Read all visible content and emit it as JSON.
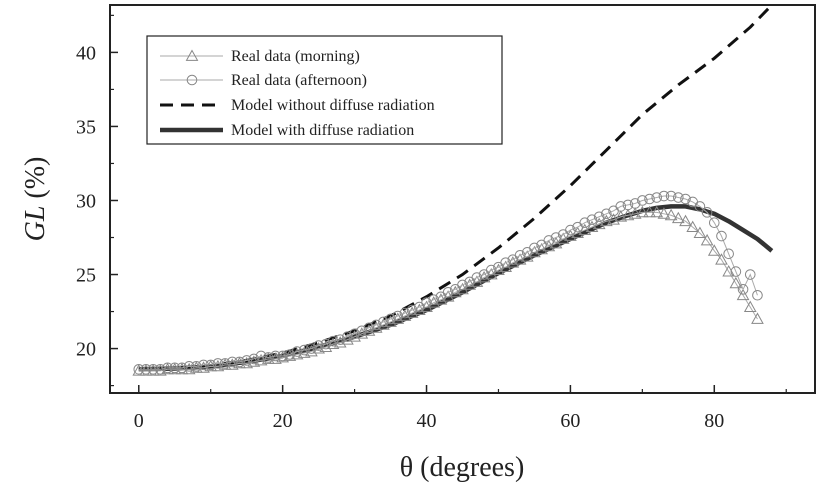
{
  "chart_data": {
    "type": "line",
    "xlabel": "θ (degrees)",
    "ylabel_italic": "GL",
    "ylabel_rest": " (%)",
    "xlim": [
      -4,
      94
    ],
    "ylim": [
      17.0,
      43.2
    ],
    "xticks": [
      0,
      20,
      40,
      60,
      80
    ],
    "yticks": [
      20,
      25,
      30,
      35,
      40
    ],
    "grid": false,
    "legend_position": "top-left",
    "series": [
      {
        "name": "Real data (morning)",
        "marker": "triangle",
        "color": "#888888",
        "x": [
          0,
          1,
          2,
          3,
          4,
          5,
          6,
          7,
          8,
          9,
          10,
          11,
          12,
          13,
          14,
          15,
          16,
          17,
          18,
          19,
          20,
          21,
          22,
          23,
          24,
          25,
          26,
          27,
          28,
          29,
          30,
          31,
          32,
          33,
          34,
          35,
          36,
          37,
          38,
          39,
          40,
          41,
          42,
          43,
          44,
          45,
          46,
          47,
          48,
          49,
          50,
          51,
          52,
          53,
          54,
          55,
          56,
          57,
          58,
          59,
          60,
          61,
          62,
          63,
          64,
          65,
          66,
          67,
          68,
          69,
          70,
          71,
          72,
          73,
          74,
          75,
          76,
          77,
          78,
          79,
          80,
          81,
          82,
          83,
          84,
          85,
          86
        ],
        "y": [
          18.5,
          18.5,
          18.5,
          18.5,
          18.6,
          18.6,
          18.6,
          18.6,
          18.7,
          18.7,
          18.8,
          18.8,
          18.9,
          18.9,
          19.0,
          19.0,
          19.1,
          19.2,
          19.3,
          19.3,
          19.4,
          19.5,
          19.6,
          19.7,
          19.8,
          20.0,
          20.1,
          20.3,
          20.4,
          20.6,
          20.8,
          21.0,
          21.2,
          21.4,
          21.6,
          21.8,
          22.0,
          22.2,
          22.4,
          22.6,
          22.8,
          23.1,
          23.3,
          23.5,
          23.8,
          24.0,
          24.3,
          24.5,
          24.8,
          25.0,
          25.3,
          25.5,
          25.8,
          26.0,
          26.2,
          26.5,
          26.7,
          26.9,
          27.1,
          27.4,
          27.6,
          27.8,
          28.0,
          28.2,
          28.4,
          28.6,
          28.7,
          28.9,
          29.0,
          29.1,
          29.2,
          29.2,
          29.2,
          29.1,
          29.0,
          28.8,
          28.6,
          28.2,
          27.8,
          27.3,
          26.6,
          26.0,
          25.2,
          24.4,
          23.6,
          22.8,
          22.0
        ]
      },
      {
        "name": "Real data (afternoon)",
        "marker": "circle",
        "color": "#888888",
        "x": [
          0,
          1,
          2,
          3,
          4,
          5,
          6,
          7,
          8,
          9,
          10,
          11,
          12,
          13,
          14,
          15,
          16,
          17,
          18,
          19,
          20,
          21,
          22,
          23,
          24,
          25,
          26,
          27,
          28,
          29,
          30,
          31,
          32,
          33,
          34,
          35,
          36,
          37,
          38,
          39,
          40,
          41,
          42,
          43,
          44,
          45,
          46,
          47,
          48,
          49,
          50,
          51,
          52,
          53,
          54,
          55,
          56,
          57,
          58,
          59,
          60,
          61,
          62,
          63,
          64,
          65,
          66,
          67,
          68,
          69,
          70,
          71,
          72,
          73,
          74,
          75,
          76,
          77,
          78,
          79,
          80,
          81,
          82,
          83,
          84,
          85,
          86
        ],
        "y": [
          18.6,
          18.6,
          18.6,
          18.6,
          18.7,
          18.7,
          18.7,
          18.8,
          18.8,
          18.9,
          18.9,
          19.0,
          19.0,
          19.1,
          19.1,
          19.2,
          19.3,
          19.5,
          19.4,
          19.5,
          19.5,
          19.6,
          19.8,
          19.9,
          20.0,
          20.2,
          20.3,
          20.5,
          20.6,
          20.8,
          21.0,
          21.2,
          21.4,
          21.6,
          21.8,
          22.0,
          22.2,
          22.4,
          22.6,
          22.8,
          23.1,
          23.3,
          23.5,
          23.8,
          24.0,
          24.3,
          24.5,
          24.8,
          25.0,
          25.3,
          25.5,
          25.8,
          26.0,
          26.3,
          26.5,
          26.8,
          27.0,
          27.3,
          27.5,
          27.7,
          28.0,
          28.2,
          28.5,
          28.7,
          28.9,
          29.1,
          29.3,
          29.6,
          29.7,
          29.8,
          30.0,
          30.1,
          30.2,
          30.3,
          30.3,
          30.2,
          30.1,
          29.9,
          29.6,
          29.2,
          28.5,
          27.6,
          26.4,
          25.2,
          24.0,
          25.0,
          23.6
        ]
      },
      {
        "name": "Model without diffuse radiation",
        "line_style": "dashed",
        "color": "#111111",
        "x": [
          0,
          5,
          10,
          15,
          20,
          25,
          30,
          35,
          40,
          45,
          50,
          55,
          60,
          65,
          70,
          75,
          80,
          85,
          88
        ],
        "y": [
          18.6,
          18.65,
          18.85,
          19.2,
          19.7,
          20.4,
          21.2,
          22.2,
          23.5,
          25.0,
          26.8,
          28.8,
          31.0,
          33.4,
          35.8,
          37.8,
          39.6,
          41.7,
          43.2
        ]
      },
      {
        "name": "Model with diffuse radiation",
        "line_style": "solid",
        "color": "#333333",
        "x": [
          0,
          5,
          10,
          15,
          20,
          25,
          30,
          35,
          40,
          45,
          50,
          55,
          60,
          65,
          68,
          70,
          72,
          74,
          76,
          78,
          80,
          82,
          84,
          86,
          88
        ],
        "y": [
          18.6,
          18.65,
          18.8,
          19.1,
          19.5,
          20.1,
          20.8,
          21.6,
          22.6,
          23.8,
          25.1,
          26.3,
          27.4,
          28.5,
          29.0,
          29.3,
          29.5,
          29.6,
          29.6,
          29.4,
          29.1,
          28.6,
          28.0,
          27.4,
          26.6
        ]
      }
    ]
  }
}
